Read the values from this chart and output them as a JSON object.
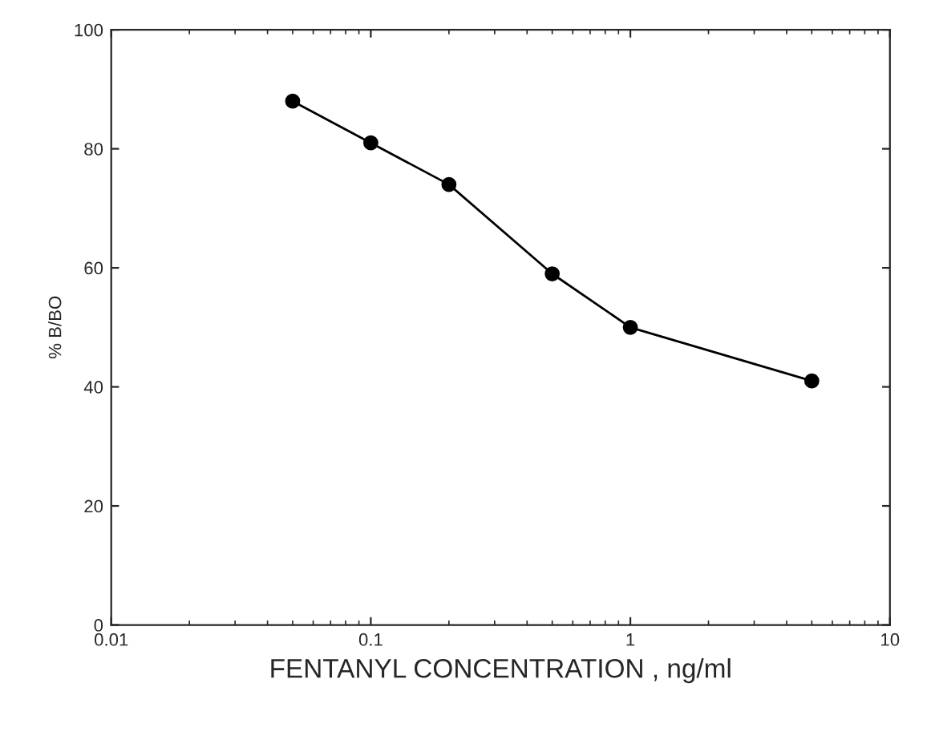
{
  "chart_data": {
    "type": "line",
    "xlabel": "FENTANYL CONCENTRATION , ng/ml",
    "ylabel": "% B/BO",
    "x": [
      0.05,
      0.1,
      0.2,
      0.5,
      1,
      5
    ],
    "series": [
      {
        "color": "#000000",
        "values": [
          88,
          81,
          74,
          59,
          50,
          41
        ]
      }
    ],
    "log": "x",
    "xlim": [
      0.01,
      10
    ],
    "xticks": [
      0.01,
      0.1,
      1,
      10
    ],
    "ylim": [
      0,
      100
    ],
    "yticks": [
      0,
      20,
      40,
      60,
      80,
      100
    ],
    "marker": "circle",
    "line_style": "solid",
    "grid": false,
    "legend": false
  }
}
